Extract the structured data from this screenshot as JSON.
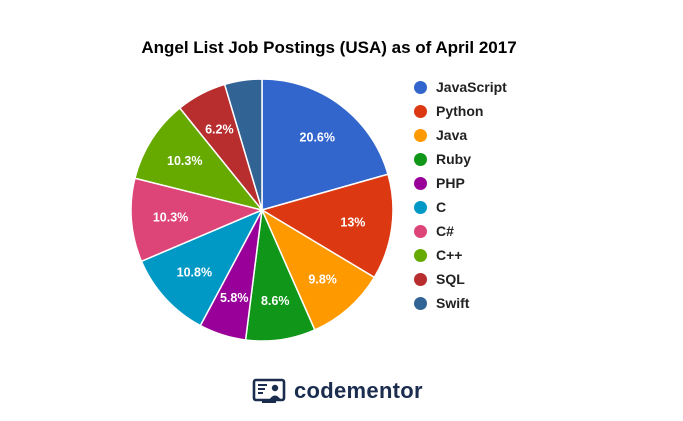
{
  "colors": {
    "logo": "#1b2d4f"
  },
  "logo": {
    "icon": "codementor-logo-icon",
    "text": "codementor"
  },
  "chart_data": {
    "type": "pie",
    "title": "Angel List Job Postings (USA) as of April 2017",
    "legend_position": "right",
    "slices": [
      {
        "label": "JavaScript",
        "value": 20.6,
        "display": "20.6%",
        "color": "#3366cc"
      },
      {
        "label": "Python",
        "value": 13,
        "display": "13%",
        "color": "#dc3912"
      },
      {
        "label": "Java",
        "value": 9.8,
        "display": "9.8%",
        "color": "#ff9900"
      },
      {
        "label": "Ruby",
        "value": 8.6,
        "display": "8.6%",
        "color": "#109618"
      },
      {
        "label": "PHP",
        "value": 5.8,
        "display": "5.8%",
        "color": "#990099"
      },
      {
        "label": "C",
        "value": 10.8,
        "display": "10.8%",
        "color": "#0099c6"
      },
      {
        "label": "C#",
        "value": 10.3,
        "display": "10.3%",
        "color": "#dd4477"
      },
      {
        "label": "C++",
        "value": 10.3,
        "display": "10.3%",
        "color": "#66aa00"
      },
      {
        "label": "SQL",
        "value": 6.2,
        "display": "6.2%",
        "color": "#b82e2e"
      },
      {
        "label": "Swift",
        "value": 4.6,
        "display": "",
        "color": "#316395"
      }
    ]
  }
}
